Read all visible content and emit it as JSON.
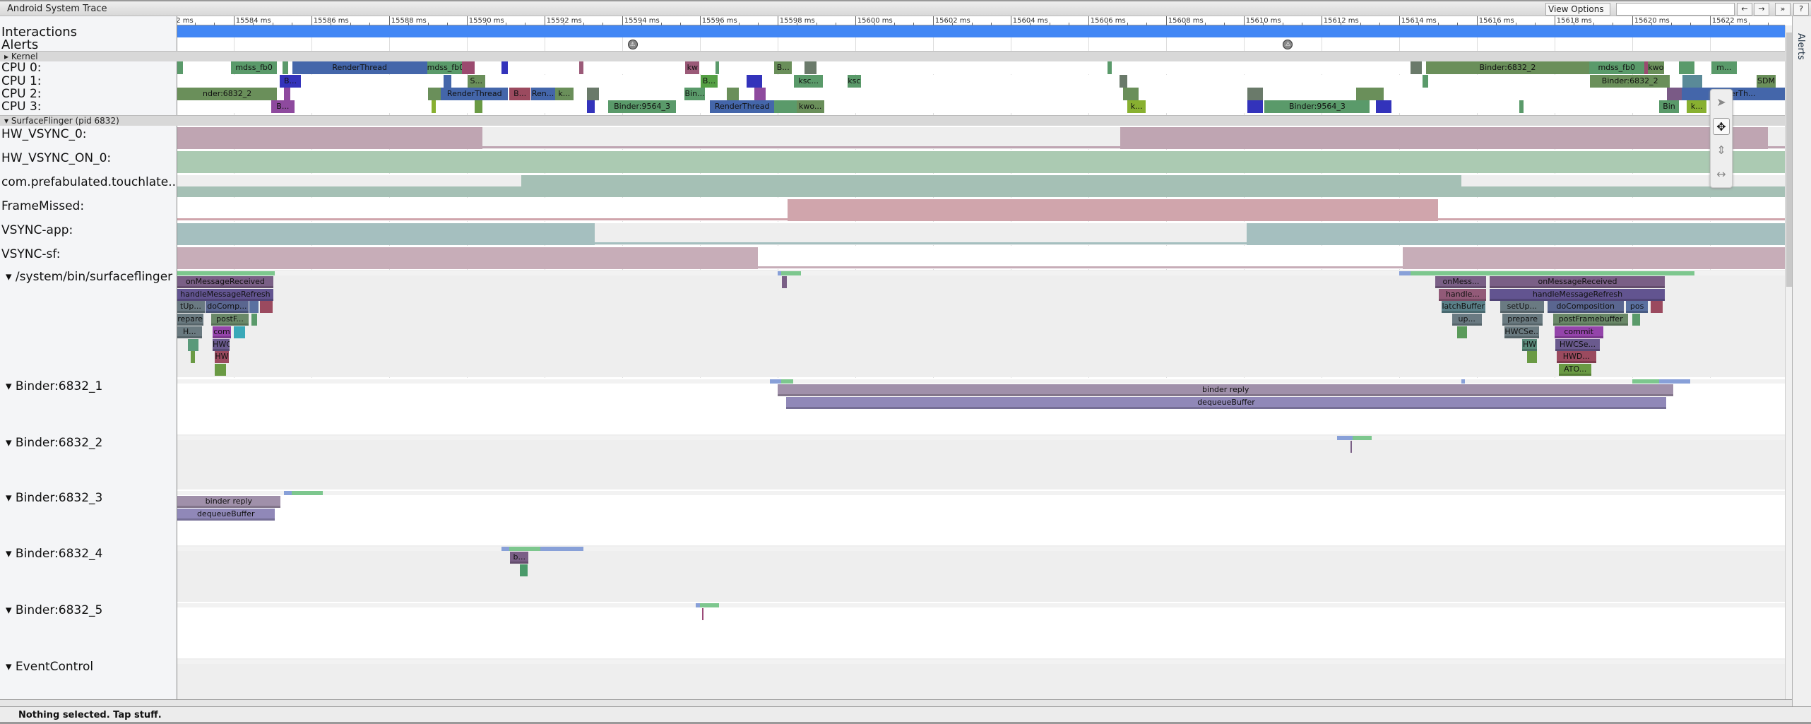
{
  "app": {
    "title": "Android System Trace",
    "view_options_label": "View Options ▾",
    "search_value": "",
    "search_placeholder": "",
    "buttons": [
      "←",
      "→",
      "»",
      "?"
    ],
    "status": "Nothing selected. Tap stuff.",
    "alerts_tab": "Alerts"
  },
  "tools": [
    {
      "icon": "pointer-icon",
      "selected": false
    },
    {
      "icon": "pan-icon",
      "selected": true,
      "glyph": "✥"
    },
    {
      "icon": "zoom-icon",
      "glyph": "↕"
    },
    {
      "icon": "timing-icon",
      "glyph": "↔"
    }
  ],
  "ruler": {
    "unit": "ms",
    "view_start_ms": 15582.55,
    "view_end_ms": 15623.93,
    "major_step_ms": 2,
    "minor_step_ms": 0.5
  },
  "interactions": {
    "label": "Interactions",
    "color": "#4287f5"
  },
  "alerts": {
    "label": "Alerts",
    "times_ms": [
      15594.27,
      15611.14
    ]
  },
  "kernel_header": "▸ Kernel",
  "sf_header": "▾ SurfaceFlinger (pid 6832)",
  "cpus": [
    {
      "label": "CPU 0:",
      "slices": [
        [
          15582.55,
          15582.7,
          "",
          "#5a9a6a"
        ],
        [
          15583.93,
          15585.12,
          "mdss_fb0",
          "#5a9a6a"
        ],
        [
          15585.25,
          15585.4,
          "",
          "#5a9a6a"
        ],
        [
          15585.51,
          15588.98,
          "RenderThread",
          "#4466aa"
        ],
        [
          15588.98,
          15589.87,
          "mdss_fb0",
          "#5a9a6a"
        ],
        [
          15589.87,
          15590.2,
          "",
          "#9b4a6f"
        ],
        [
          15590.9,
          15591.05,
          "",
          "#3333bb"
        ],
        [
          15592.9,
          15593.0,
          "",
          "#9b5a78"
        ],
        [
          15595.63,
          15595.99,
          "kw",
          "#9b5a78"
        ],
        [
          15596.4,
          15596.5,
          "",
          "#5a9a6a"
        ],
        [
          15597.92,
          15598.37,
          "B...",
          "#6a8f5a"
        ],
        [
          15598.7,
          15599.0,
          "",
          "#6a7a6a"
        ],
        [
          15606.5,
          15606.6,
          "",
          "#5a9a6a"
        ],
        [
          15614.3,
          15614.58,
          "",
          "#6a7a6a"
        ],
        [
          15614.7,
          15618.89,
          "Binder:6832_2",
          "#6a8f5a"
        ],
        [
          15618.89,
          15620.31,
          "mdss_fb0",
          "#5a9a6a"
        ],
        [
          15620.31,
          15620.4,
          "",
          "#9b4a6f"
        ],
        [
          15620.4,
          15620.82,
          "kwo",
          "#6a8f5a"
        ],
        [
          15621.2,
          15621.6,
          "",
          "#5a9a6a"
        ],
        [
          15622.04,
          15622.69,
          "m...",
          "#5a9a6a"
        ]
      ]
    },
    {
      "label": "CPU 1:",
      "slices": [
        [
          15585.18,
          15585.74,
          "B...",
          "#3333bb"
        ],
        [
          15589.4,
          15589.6,
          "",
          "#4466aa"
        ],
        [
          15590.02,
          15590.47,
          "S...",
          "#6a8f5a"
        ],
        [
          15596.02,
          15596.46,
          "B...",
          "#55a044"
        ],
        [
          15597.2,
          15597.6,
          "",
          "#3333bb"
        ],
        [
          15598.43,
          15599.17,
          "ksc...",
          "#5a9a6a"
        ],
        [
          15599.8,
          15600.15,
          "ksc",
          "#5a9a6a"
        ],
        [
          15606.8,
          15607.0,
          "",
          "#6a7a6a"
        ],
        [
          15614.6,
          15614.75,
          "",
          "#5a9a6a"
        ],
        [
          15618.92,
          15620.97,
          "Binder:6832_2",
          "#6a8f5a"
        ],
        [
          15621.3,
          15621.8,
          "",
          "#5a8a98"
        ],
        [
          15623.2,
          15623.7,
          "SDM",
          "#6a8f5a"
        ]
      ]
    },
    {
      "label": "CPU 2:",
      "slices": [
        [
          15582.55,
          15585.12,
          "nder:6832_2",
          "#6a8f5a"
        ],
        [
          15585.3,
          15585.45,
          "",
          "#8e4a9e"
        ],
        [
          15589.0,
          15589.34,
          "",
          "#6a8f5a"
        ],
        [
          15589.34,
          15591.06,
          "RenderThread",
          "#4466aa"
        ],
        [
          15591.09,
          15591.65,
          "B...",
          "#9b4a5f"
        ],
        [
          15591.65,
          15592.27,
          "Ren...",
          "#4466aa"
        ],
        [
          15592.27,
          15592.75,
          "k...",
          "#6a8f5a"
        ],
        [
          15593.1,
          15593.4,
          "",
          "#6a7a6a"
        ],
        [
          15595.6,
          15596.14,
          "Bin...",
          "#5a9a6a"
        ],
        [
          15596.7,
          15597.0,
          "",
          "#6a8f5a"
        ],
        [
          15597.4,
          15597.7,
          "",
          "#8e4a9e"
        ],
        [
          15606.9,
          15607.3,
          "",
          "#6a8f5a"
        ],
        [
          15610.1,
          15610.5,
          "",
          "#6a7a6a"
        ],
        [
          15612.9,
          15613.6,
          "",
          "#6a8f5a"
        ],
        [
          15620.9,
          15621.27,
          "",
          "#7a5a86"
        ],
        [
          15621.27,
          15623.93,
          "RenderTh...",
          "#4466aa"
        ]
      ]
    },
    {
      "label": "CPU 3:",
      "slices": [
        [
          15584.97,
          15585.56,
          "B...",
          "#8e4a9e"
        ],
        [
          15589.1,
          15589.2,
          "",
          "#88b030"
        ],
        [
          15590.2,
          15590.4,
          "",
          "#6a9a44"
        ],
        [
          15593.1,
          15593.3,
          "",
          "#3333bb"
        ],
        [
          15593.64,
          15595.39,
          "Binder:9564_3",
          "#5a9a6a"
        ],
        [
          15596.26,
          15597.92,
          "RenderThread",
          "#4466aa"
        ],
        [
          15597.92,
          15598.49,
          "",
          "#5a9a6a"
        ],
        [
          15598.49,
          15599.2,
          "kwo...",
          "#6a8f5a"
        ],
        [
          15607.01,
          15607.48,
          "k...",
          "#88b030"
        ],
        [
          15610.1,
          15610.5,
          "",
          "#3333bb"
        ],
        [
          15610.54,
          15613.25,
          "Binder:9564_3",
          "#5a9a6a"
        ],
        [
          15613.4,
          15613.8,
          "",
          "#3333bb"
        ],
        [
          15617.1,
          15617.2,
          "",
          "#5a9a6a"
        ],
        [
          15620.7,
          15621.2,
          "Bin",
          "#5a9a6a"
        ],
        [
          15621.41,
          15621.92,
          "k...",
          "#88b030"
        ]
      ]
    }
  ],
  "counters": [
    {
      "label": "HW_VSYNC_0:",
      "color": "#bfa5b2",
      "bg": "#eeeeee",
      "high": [
        [
          15582.55,
          15590.41
        ],
        [
          15606.83,
          15623.5
        ]
      ]
    },
    {
      "label": "HW_VSYNC_ON_0:",
      "color": "#abcab2",
      "bg": "#eeeeee",
      "high": [
        [
          15582.55,
          15623.93
        ]
      ]
    },
    {
      "label": "com.prefabulated.touchlate...",
      "color": "#a5c0b5",
      "bg": "#eeeeee",
      "high": [
        [
          15591.4,
          15615.6
        ]
      ],
      "low_level": 0.5
    },
    {
      "label": "FrameMissed:",
      "color": "#d0a5ac",
      "bg": "#ffffff",
      "high": [
        [
          15598.25,
          15615.0
        ]
      ]
    },
    {
      "label": "VSYNC-app:",
      "color": "#a5bfbf",
      "bg": "#eeeeee",
      "high": [
        [
          15582.55,
          15593.3
        ],
        [
          15610.07,
          15623.93
        ]
      ]
    },
    {
      "label": "VSYNC-sf:",
      "color": "#c7adb8",
      "bg": "#ffffff",
      "high": [
        [
          15582.55,
          15597.5
        ],
        [
          15614.1,
          15623.93
        ]
      ]
    }
  ],
  "threads": [
    {
      "label": "▾  /system/bin/surfaceflinger",
      "bg": "#eeeeee",
      "activity": [
        [
          15582.55,
          15585.05,
          "#7dc78e"
        ],
        [
          15598.0,
          15598.1,
          "#88a0d8"
        ],
        [
          15598.1,
          15598.6,
          "#7dc78e"
        ],
        [
          15614.0,
          15614.3,
          "#88a0d8"
        ],
        [
          15614.3,
          15621.6,
          "#7dc78e"
        ]
      ],
      "slices": [
        [
          15582.54,
          15585.03,
          0,
          "onMessageReceived",
          "#7a5f86"
        ],
        [
          15582.54,
          15585.03,
          1,
          "handleMessageRefresh",
          "#625490"
        ],
        [
          15582.54,
          15583.25,
          2,
          "tUp...",
          "#6a7a82"
        ],
        [
          15583.28,
          15584.38,
          2,
          "doComp...",
          "#5a6690"
        ],
        [
          15584.41,
          15584.65,
          2,
          "",
          "#5a70a0"
        ],
        [
          15584.68,
          15585.0,
          2,
          "",
          "#9b4a5f"
        ],
        [
          15582.54,
          15583.22,
          3,
          "repare",
          "#6a7a80"
        ],
        [
          15583.43,
          15584.38,
          3,
          "postF...",
          "#6a8868"
        ],
        [
          15584.45,
          15584.6,
          3,
          "",
          "#5a9a6a"
        ],
        [
          15582.54,
          15583.19,
          4,
          "H...",
          "#6a7a80"
        ],
        [
          15583.46,
          15583.93,
          4,
          "com",
          "#9444aa"
        ],
        [
          15584.0,
          15584.3,
          4,
          "",
          "#3aa8b8"
        ],
        [
          15582.83,
          15583.1,
          5,
          "",
          "#5a9a7a"
        ],
        [
          15583.46,
          15583.9,
          5,
          "HWC",
          "#6a5a8e"
        ],
        [
          15582.89,
          15583.01,
          6,
          "",
          "#6a9a44"
        ],
        [
          15583.52,
          15583.87,
          6,
          "HW",
          "#9b4a5f"
        ],
        [
          15583.52,
          15583.81,
          7,
          "",
          "#6a9a44"
        ],
        [
          15598.12,
          15598.25,
          0,
          "",
          "#7a5f86"
        ],
        [
          15614.94,
          15616.25,
          0,
          "onMess...",
          "#7a5f86"
        ],
        [
          15616.34,
          15620.85,
          0,
          "onMessageReceived",
          "#7a5f86"
        ],
        [
          15615.03,
          15616.25,
          1,
          "handle...",
          "#925a78"
        ],
        [
          15616.34,
          15620.85,
          1,
          "handleMessageRefresh",
          "#625490"
        ],
        [
          15615.09,
          15616.22,
          2,
          "latchBuffer",
          "#5a8088"
        ],
        [
          15616.6,
          15617.73,
          2,
          "setUp...",
          "#6a7a82"
        ],
        [
          15617.82,
          15619.78,
          2,
          "doComposition",
          "#5a6690"
        ],
        [
          15619.84,
          15620.41,
          2,
          "pos",
          "#5a70a0"
        ],
        [
          15620.47,
          15620.79,
          2,
          "",
          "#9b4a5f"
        ],
        [
          15615.36,
          15616.13,
          3,
          "up...",
          "#6a7a82"
        ],
        [
          15616.66,
          15617.7,
          3,
          "prepare",
          "#6a7a80"
        ],
        [
          15617.97,
          15619.9,
          3,
          "postFramebuffer",
          "#6a8868"
        ],
        [
          15620.0,
          15620.2,
          3,
          "",
          "#5a9a6a"
        ],
        [
          15615.5,
          15615.75,
          4,
          "",
          "#5a9a5a"
        ],
        [
          15616.72,
          15617.61,
          4,
          "HWCSe...",
          "#6a7a80"
        ],
        [
          15618.0,
          15619.25,
          4,
          "commit",
          "#9444aa"
        ],
        [
          15617.17,
          15617.55,
          5,
          "HW",
          "#5a8a7a"
        ],
        [
          15618.03,
          15619.16,
          5,
          "HWCSe...",
          "#6a5a8e"
        ],
        [
          15617.3,
          15617.55,
          6,
          "",
          "#6a9a44"
        ],
        [
          15618.06,
          15619.07,
          6,
          "HWD...",
          "#9b4a5f"
        ],
        [
          15618.12,
          15618.95,
          7,
          "ATO...",
          "#6a9a44"
        ]
      ]
    },
    {
      "label": "▾  Binder:6832_1",
      "bg": "#ffffff",
      "activity": [
        [
          15597.8,
          15598.1,
          "#88a0d8"
        ],
        [
          15598.1,
          15598.4,
          "#7dc78e"
        ],
        [
          15615.6,
          15615.7,
          "#88a0d8"
        ],
        [
          15620.0,
          15620.7,
          "#7dc78e"
        ],
        [
          15620.7,
          15621.5,
          "#88a0d8"
        ]
      ],
      "slices": [
        [
          15598.01,
          15621.06,
          0,
          "binder reply",
          "#a090aa"
        ],
        [
          15598.22,
          15620.88,
          1,
          "dequeueBuffer",
          "#9088b8"
        ]
      ]
    },
    {
      "label": "▾  Binder:6832_2",
      "bg": "#eeeeee",
      "activity": [
        [
          15612.4,
          15612.8,
          "#88a0d8"
        ],
        [
          15612.8,
          15613.3,
          "#7dc78e"
        ]
      ],
      "slices": [
        [
          15612.75,
          15612.78,
          0,
          "",
          "#7a5f86"
        ]
      ]
    },
    {
      "label": "▾  Binder:6832_3",
      "bg": "#ffffff",
      "activity": [
        [
          15585.3,
          15585.5,
          "#88a0d8"
        ],
        [
          15585.5,
          15586.3,
          "#7dc78e"
        ]
      ],
      "slices": [
        [
          15582.54,
          15585.21,
          0,
          "binder reply",
          "#a090aa"
        ],
        [
          15582.54,
          15585.06,
          1,
          "dequeueBuffer",
          "#9088b8"
        ]
      ]
    },
    {
      "label": "▾  Binder:6832_4",
      "bg": "#eeeeee",
      "activity": [
        [
          15590.9,
          15591.1,
          "#88a0d8"
        ],
        [
          15591.1,
          15591.9,
          "#7dc78e"
        ],
        [
          15591.9,
          15593.0,
          "#88a0d8"
        ]
      ],
      "slices": [
        [
          15591.12,
          15591.59,
          0,
          "b...",
          "#7a5f86"
        ],
        [
          15591.36,
          15591.57,
          1,
          "",
          "#4a9a6a"
        ]
      ]
    },
    {
      "label": "▾  Binder:6832_5",
      "bg": "#ffffff",
      "activity": [
        [
          15595.9,
          15596.0,
          "#88a0d8"
        ],
        [
          15596.0,
          15596.5,
          "#7dc78e"
        ]
      ],
      "slices": [
        [
          15596.05,
          15596.08,
          0,
          "",
          "#9b4a78"
        ]
      ]
    },
    {
      "label": "▾  EventControl",
      "bg": "#eeeeee",
      "activity": [],
      "slices": []
    }
  ]
}
